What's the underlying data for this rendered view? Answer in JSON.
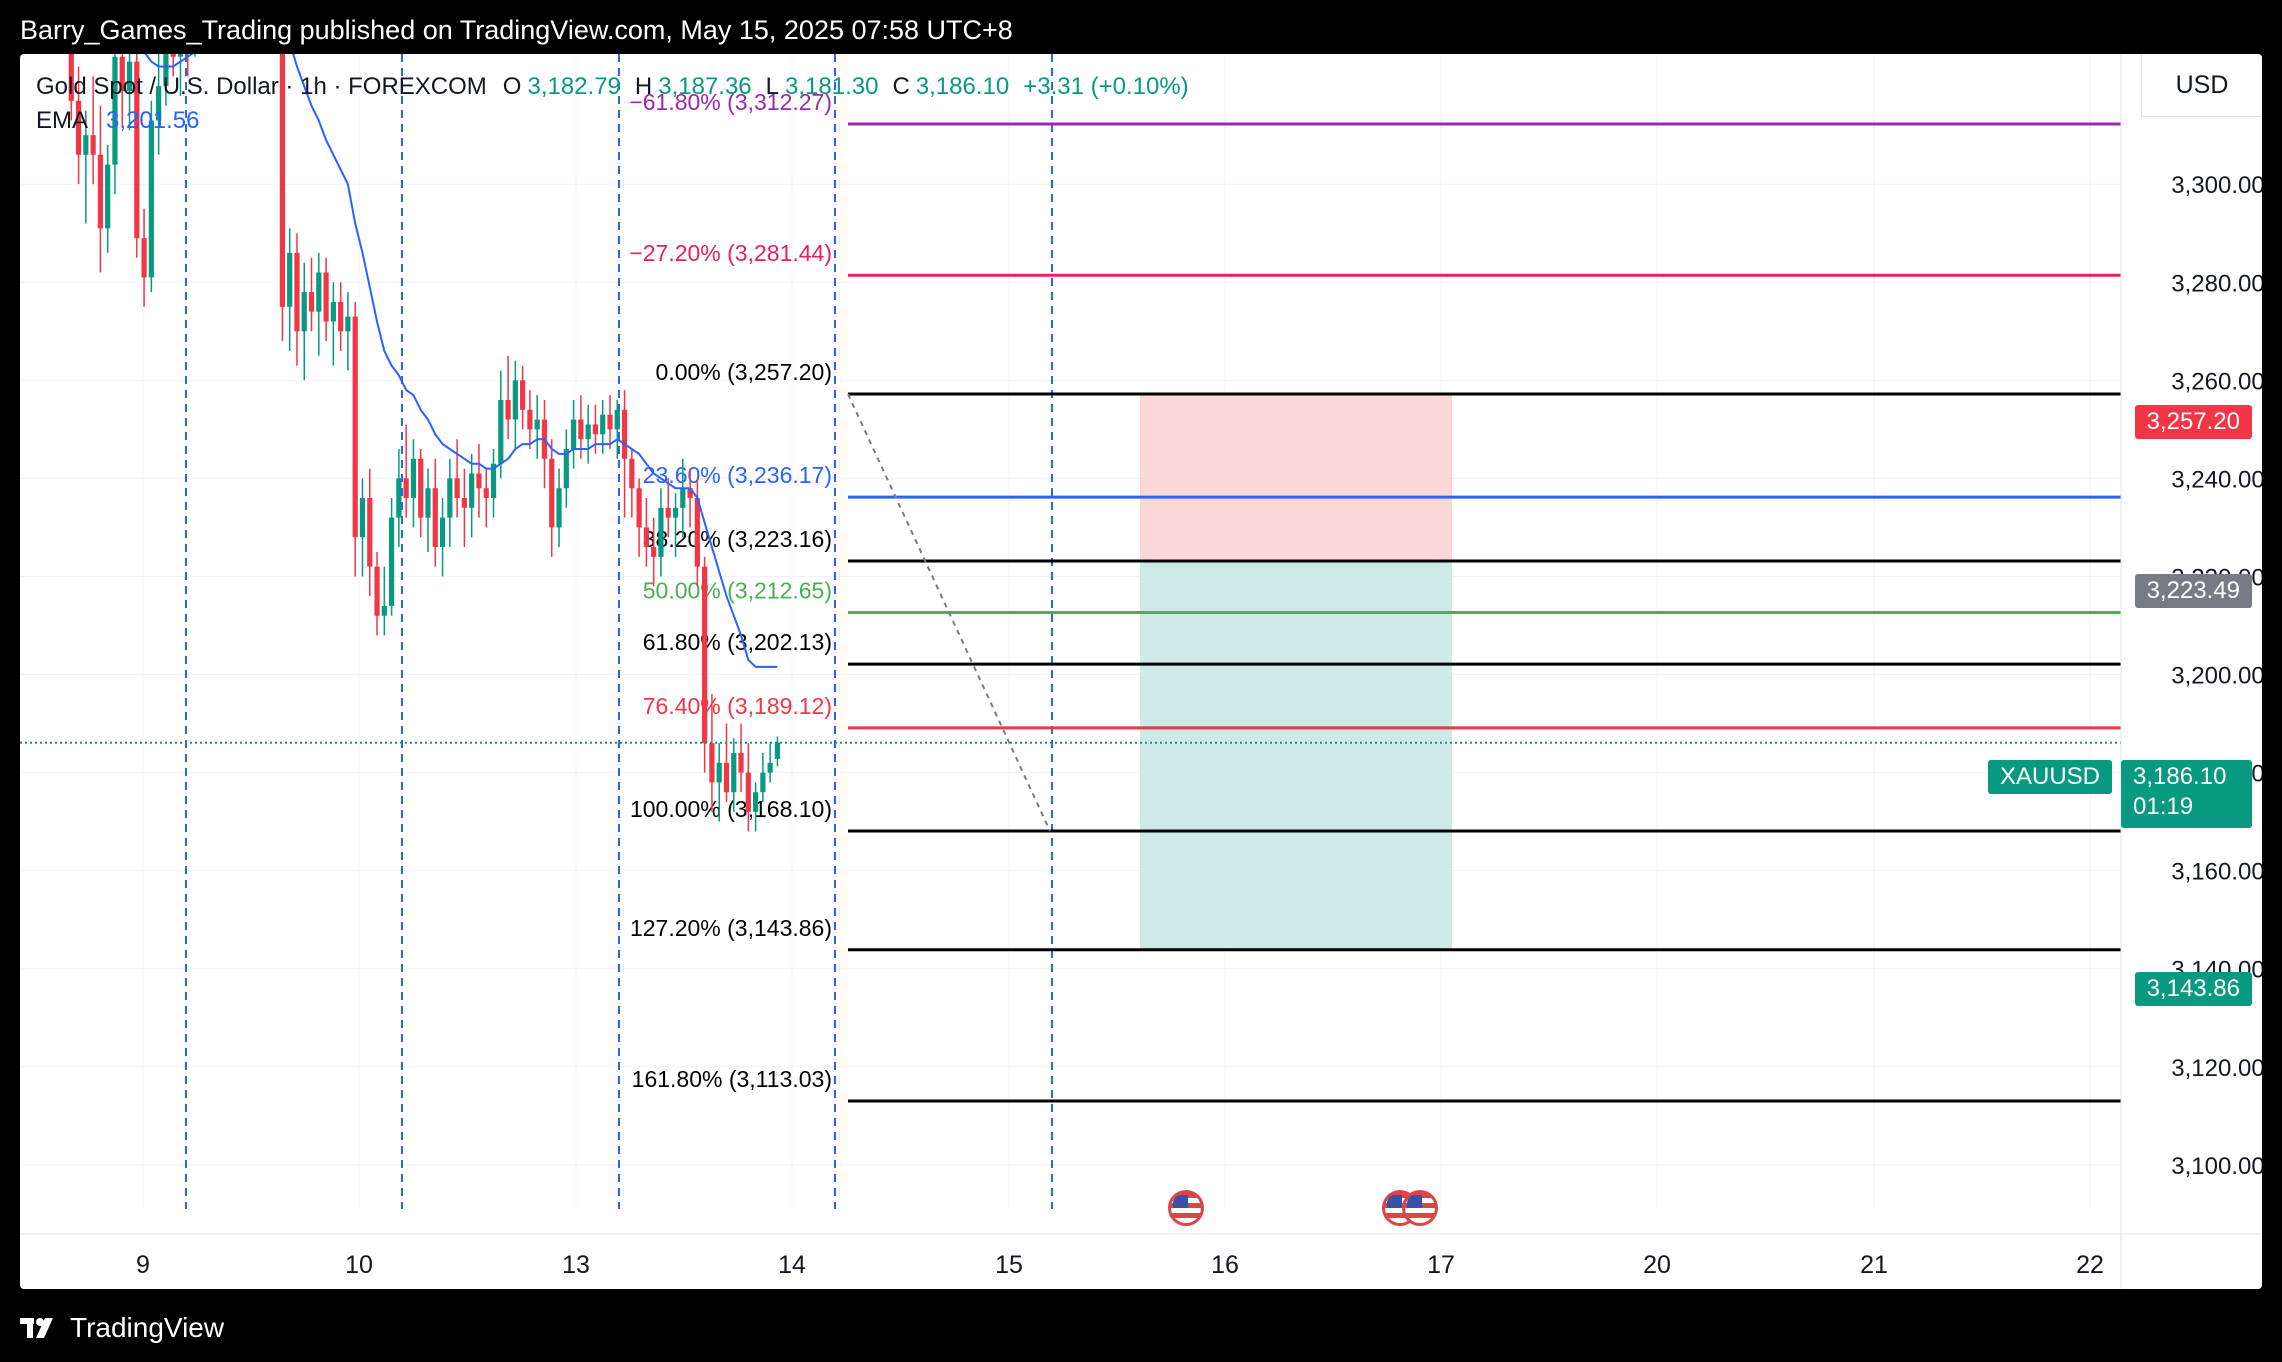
{
  "header": {
    "publisher_line": "Barry_Games_Trading published on TradingView.com, May 15, 2025 07:58 UTC+8"
  },
  "legend": {
    "symbol": "Gold Spot / U.S. Dollar · 1h · FOREXCOM",
    "open_label": "O",
    "open": "3,182.79",
    "high_label": "H",
    "high": "3,187.36",
    "low_label": "L",
    "low": "3,181.30",
    "close_label": "C",
    "close": "3,186.10",
    "change": "+3.31 (+0.10%)",
    "ema_label": "EMA",
    "ema_value": "3,201.56"
  },
  "currency_button": "USD",
  "price_tags": {
    "top": "3,257.20",
    "mid": "3,223.49",
    "symbol": "XAUUSD",
    "last": "3,186.10",
    "countdown": "01:19",
    "target": "3,143.86"
  },
  "colors": {
    "up": "#089981",
    "down": "#f23645",
    "ema": "#2962ff",
    "fib_black": "#000000",
    "fib_purple": "#9c27b0",
    "fib_pink": "#e91e63",
    "fib_blue": "#2962ff",
    "fib_green": "#4caf50",
    "fib_red": "#f23645",
    "stop_zone": "#fbd7d7",
    "target_zone": "#cdeae6",
    "tag_grey": "#787b86"
  },
  "footer": {
    "brand": "TradingView"
  },
  "chart_data": {
    "type": "candlestick",
    "title": "Gold Spot / U.S. Dollar · 1h · FOREXCOM",
    "ylim": [
      3091,
      3329
    ],
    "y_ticks": [
      "3,100.00",
      "3,120.00",
      "3,140.00",
      "3,160.00",
      "3,180.00",
      "3,200.00",
      "3,220.00",
      "3,240.00",
      "3,260.00",
      "3,280.00",
      "3,300.00"
    ],
    "x_ticks": [
      "9",
      "10",
      "13",
      "14",
      "15",
      "16",
      "17",
      "20",
      "21",
      "22"
    ],
    "fib_levels": [
      {
        "label": "−61.80% (3,312.27)",
        "value": 3312.27,
        "color": "#9c27b0"
      },
      {
        "label": "−27.20% (3,281.44)",
        "value": 3281.44,
        "color": "#e91e63"
      },
      {
        "label": "0.00% (3,257.20)",
        "value": 3257.2,
        "color": "#000000"
      },
      {
        "label": "23.60% (3,236.17)",
        "value": 3236.17,
        "color": "#2962ff"
      },
      {
        "label": "38.20% (3,223.16)",
        "value": 3223.16,
        "color": "#000000"
      },
      {
        "label": "50.00% (3,212.65)",
        "value": 3212.65,
        "color": "#4caf50"
      },
      {
        "label": "61.80% (3,202.13)",
        "value": 3202.13,
        "color": "#000000"
      },
      {
        "label": "76.40% (3,189.12)",
        "value": 3189.12,
        "color": "#f23645"
      },
      {
        "label": "100.00% (3,168.10)",
        "value": 3168.1,
        "color": "#000000"
      },
      {
        "label": "127.20% (3,143.86)",
        "value": 3143.86,
        "color": "#000000"
      },
      {
        "label": "161.80% (3,113.03)",
        "value": 3113.03,
        "color": "#000000"
      }
    ],
    "last_price": 3186.1,
    "position": {
      "entry": 3223.49,
      "stop": 3257.2,
      "target": 3143.86
    },
    "candles_ohlc": [
      [
        3346,
        3352,
        3327,
        3334
      ],
      [
        3334,
        3339,
        3313,
        3317
      ],
      [
        3317,
        3324,
        3300,
        3306
      ],
      [
        3306,
        3315,
        3292,
        3310
      ],
      [
        3310,
        3322,
        3300,
        3306
      ],
      [
        3306,
        3316,
        3282,
        3291
      ],
      [
        3291,
        3308,
        3286,
        3304
      ],
      [
        3304,
        3332,
        3298,
        3326
      ],
      [
        3326,
        3333,
        3312,
        3319
      ],
      [
        3319,
        3330,
        3311,
        3325
      ],
      [
        3325,
        3329,
        3285,
        3289
      ],
      [
        3289,
        3295,
        3275,
        3281
      ],
      [
        3281,
        3317,
        3278,
        3313
      ],
      [
        3313,
        3329,
        3306,
        3320
      ],
      [
        3320,
        3334,
        3316,
        3330
      ],
      [
        3330,
        3342,
        3322,
        3326
      ],
      [
        3326,
        3343,
        3318,
        3337
      ],
      [
        3337,
        3346,
        3322,
        3329
      ],
      [
        3329,
        3346,
        3326,
        3343
      ],
      [
        3343,
        3350,
        3332,
        3336
      ],
      [
        3336,
        3352,
        3333,
        3347
      ],
      [
        3347,
        3358,
        3342,
        3352
      ],
      [
        3352,
        3360,
        3344,
        3348
      ],
      [
        3348,
        3356,
        3342,
        3353
      ],
      [
        3353,
        3362,
        3346,
        3356
      ],
      [
        3356,
        3365,
        3350,
        3358
      ],
      [
        3358,
        3364,
        3348,
        3352
      ],
      [
        3352,
        3357,
        3345,
        3350
      ],
      [
        3350,
        3356,
        3344,
        3348
      ],
      [
        3348,
        3353,
        3340,
        3344
      ],
      [
        3344,
        3345,
        3268,
        3275
      ],
      [
        3275,
        3291,
        3266,
        3286
      ],
      [
        3286,
        3290,
        3263,
        3270
      ],
      [
        3270,
        3284,
        3260,
        3278
      ],
      [
        3278,
        3285,
        3270,
        3274
      ],
      [
        3274,
        3286,
        3265,
        3282
      ],
      [
        3282,
        3285,
        3268,
        3272
      ],
      [
        3272,
        3280,
        3263,
        3276
      ],
      [
        3276,
        3280,
        3266,
        3270
      ],
      [
        3270,
        3278,
        3262,
        3273
      ],
      [
        3273,
        3276,
        3220,
        3228
      ],
      [
        3228,
        3240,
        3220,
        3236
      ],
      [
        3236,
        3242,
        3216,
        3222
      ],
      [
        3222,
        3225,
        3208,
        3212
      ],
      [
        3212,
        3222,
        3208,
        3214
      ],
      [
        3214,
        3236,
        3212,
        3232
      ],
      [
        3232,
        3246,
        3226,
        3240
      ],
      [
        3240,
        3251,
        3232,
        3236
      ],
      [
        3236,
        3248,
        3230,
        3244
      ],
      [
        3244,
        3246,
        3228,
        3232
      ],
      [
        3232,
        3242,
        3225,
        3238
      ],
      [
        3238,
        3244,
        3222,
        3226
      ],
      [
        3226,
        3236,
        3220,
        3232
      ],
      [
        3232,
        3244,
        3226,
        3240
      ],
      [
        3240,
        3248,
        3232,
        3236
      ],
      [
        3236,
        3242,
        3226,
        3234
      ],
      [
        3234,
        3245,
        3228,
        3241
      ],
      [
        3241,
        3247,
        3232,
        3238
      ],
      [
        3238,
        3242,
        3230,
        3236
      ],
      [
        3236,
        3246,
        3232,
        3243
      ],
      [
        3243,
        3262,
        3240,
        3256
      ],
      [
        3256,
        3265,
        3248,
        3252
      ],
      [
        3252,
        3264,
        3246,
        3260
      ],
      [
        3260,
        3263,
        3250,
        3254
      ],
      [
        3254,
        3258,
        3246,
        3250
      ],
      [
        3250,
        3257,
        3244,
        3252
      ],
      [
        3252,
        3256,
        3238,
        3244
      ],
      [
        3244,
        3248,
        3224,
        3230
      ],
      [
        3230,
        3242,
        3226,
        3238
      ],
      [
        3238,
        3250,
        3234,
        3246
      ],
      [
        3246,
        3256,
        3242,
        3252
      ],
      [
        3252,
        3257,
        3244,
        3248
      ],
      [
        3248,
        3255,
        3243,
        3251
      ],
      [
        3251,
        3255,
        3245,
        3249
      ],
      [
        3249,
        3256,
        3245,
        3253
      ],
      [
        3253,
        3257,
        3246,
        3250
      ],
      [
        3250,
        3256,
        3244,
        3254
      ],
      [
        3254,
        3258,
        3232,
        3244
      ],
      [
        3244,
        3246,
        3232,
        3238
      ],
      [
        3238,
        3240,
        3224,
        3230
      ],
      [
        3230,
        3236,
        3222,
        3226
      ],
      [
        3226,
        3232,
        3218,
        3224
      ],
      [
        3224,
        3238,
        3220,
        3234
      ],
      [
        3234,
        3240,
        3228,
        3232
      ],
      [
        3232,
        3237,
        3224,
        3234
      ],
      [
        3234,
        3244,
        3228,
        3238
      ],
      [
        3238,
        3242,
        3230,
        3236
      ],
      [
        3236,
        3240,
        3218,
        3222
      ],
      [
        3222,
        3224,
        3180,
        3186
      ],
      [
        3186,
        3196,
        3172,
        3178
      ],
      [
        3178,
        3186,
        3170,
        3182
      ],
      [
        3182,
        3190,
        3174,
        3176
      ],
      [
        3176,
        3187,
        3172,
        3184
      ],
      [
        3184,
        3190,
        3176,
        3180
      ],
      [
        3180,
        3186,
        3168,
        3172
      ],
      [
        3172,
        3178,
        3168,
        3176
      ],
      [
        3176,
        3184,
        3174,
        3180
      ],
      [
        3180,
        3186,
        3178,
        3182
      ],
      [
        3182.79,
        3187.36,
        3181.3,
        3186.1
      ]
    ],
    "ema": [
      3353,
      3350,
      3347,
      3344,
      3341,
      3338,
      3336,
      3335,
      3334,
      3333,
      3330,
      3327,
      3325,
      3324,
      3324,
      3324,
      3325,
      3326,
      3327,
      3328,
      3329,
      3331,
      3332,
      3333,
      3335,
      3336,
      3337,
      3338,
      3339,
      3339,
      3333,
      3329,
      3324,
      3320,
      3316,
      3313,
      3309,
      3306,
      3303,
      3300,
      3292,
      3286,
      3279,
      3272,
      3266,
      3263,
      3261,
      3258,
      3257,
      3254,
      3252,
      3249,
      3247,
      3246,
      3245,
      3244,
      3243,
      3243,
      3242,
      3242,
      3243,
      3244,
      3246,
      3247,
      3247,
      3248,
      3248,
      3246,
      3245,
      3245,
      3246,
      3246,
      3246,
      3247,
      3247,
      3247,
      3248,
      3247,
      3246,
      3245,
      3243,
      3241,
      3240,
      3239,
      3238,
      3238,
      3238,
      3236,
      3231,
      3226,
      3221,
      3216,
      3212,
      3208,
      3203,
      3201.56,
      3201.56,
      3201.56,
      3201.56
    ]
  }
}
